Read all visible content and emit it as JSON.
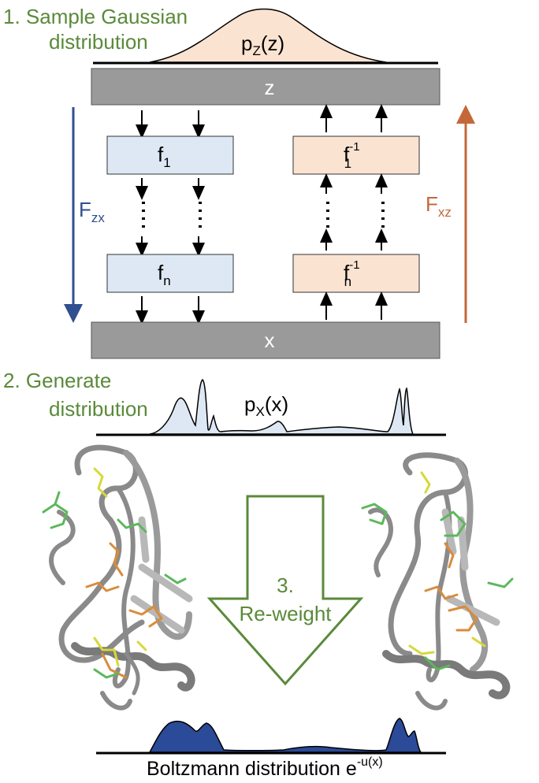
{
  "step1": {
    "line1": "1. Sample Gaussian",
    "line2": "distribution"
  },
  "pz": {
    "base": "p",
    "sub": "Z",
    "arg": "(z)"
  },
  "latent": {
    "label": "z"
  },
  "forward": {
    "f1": {
      "base": "f",
      "sub": "1"
    },
    "fn": {
      "base": "f",
      "sub": "n"
    },
    "flow": {
      "base": "F",
      "sub": "zx"
    }
  },
  "inverse": {
    "f1": {
      "base": "f",
      "sub": "1",
      "sup": "-1"
    },
    "fn": {
      "base": "f",
      "sub": "n",
      "sup": "-1"
    },
    "flow": {
      "base": "F",
      "sub": "xz"
    }
  },
  "data_bar": {
    "label": "x"
  },
  "step2": {
    "line1": "2. Generate",
    "line2": "distribution"
  },
  "px": {
    "base": "p",
    "sub": "X",
    "arg": "(x)"
  },
  "step3": {
    "line1": "3.",
    "line2": "Re-weight"
  },
  "boltzmann": {
    "text": "Boltzmann distribution e",
    "sup": "-u(x)"
  },
  "colors": {
    "green_text": "#5a8a3a",
    "blue_arrow": "#2f4f8f",
    "orange_arrow": "#c4683a",
    "blue_box": "#dde8f4",
    "orange_box": "#fbe3d2",
    "gray_bar": "#9a9a9a",
    "boltzmann_fill": "#2b4a97",
    "protein_gray": "#8a8a8a"
  }
}
